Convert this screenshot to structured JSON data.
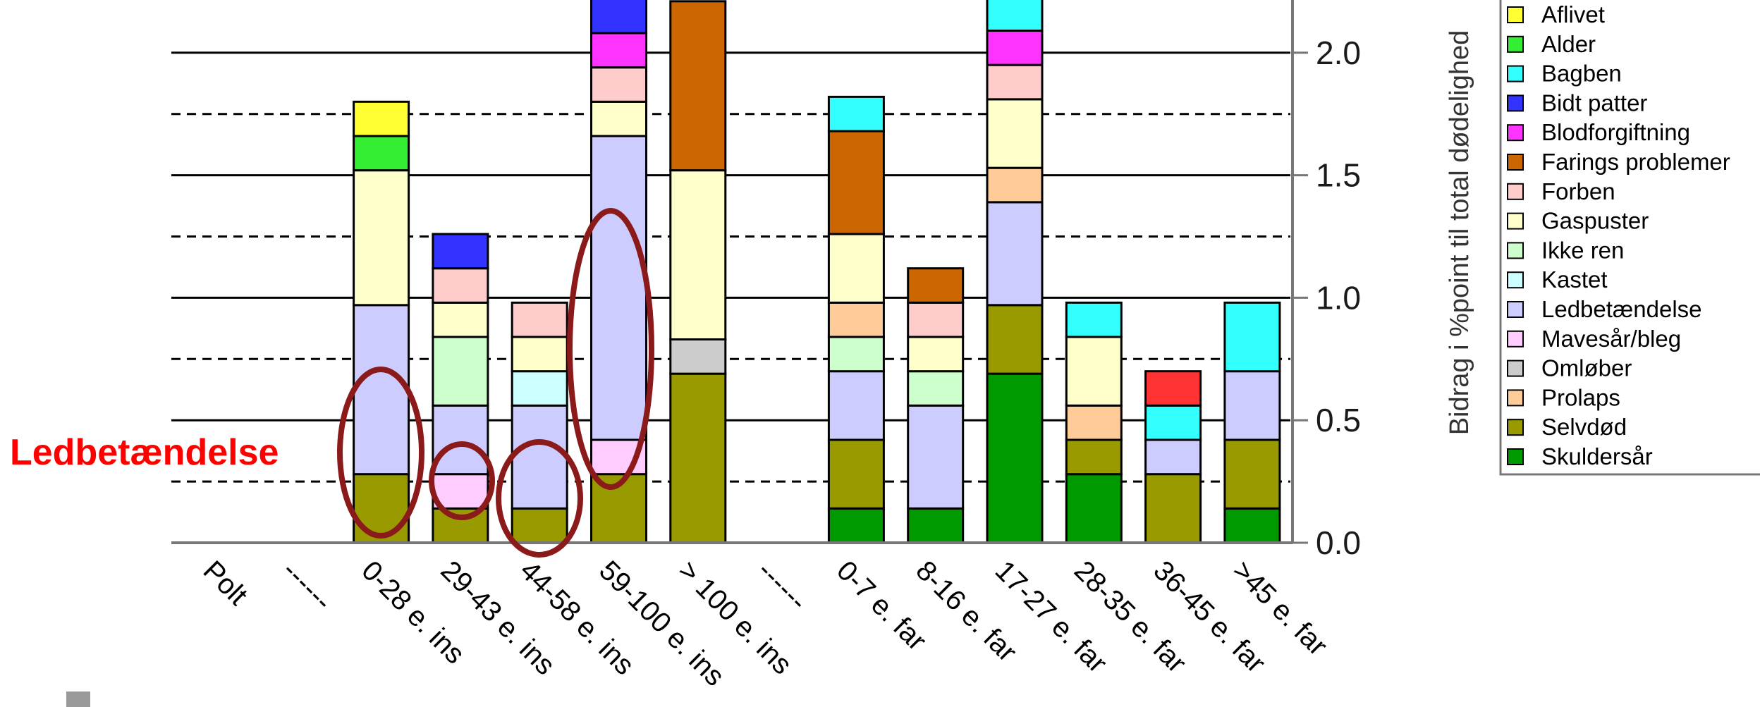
{
  "chart_data": {
    "type": "bar",
    "stacked": true,
    "ylabel": "Bidrag i %point til total dødelighed",
    "ylim": [
      0,
      2.2
    ],
    "yticks": [
      "0.0",
      "0.5",
      "1.0",
      "1.5",
      "2.0"
    ],
    "grid": "solid at 0.5 steps, dashed at 0.25 steps",
    "legend_position": "right",
    "categories": [
      "Polt",
      "------",
      "0-28 e. ins",
      "29-43 e. ins",
      "44-58 e. ins",
      "59-100 e. ins",
      "> 100 e. ins",
      "------",
      "0-7 e. far",
      "8-16 e. far",
      "17-27 e. far",
      "28-35 e. far",
      "36-45 e. far",
      ">45 e. far"
    ],
    "series": [
      {
        "name": "Skuldersår",
        "color": "#009a00",
        "values": [
          0,
          0,
          0,
          0,
          0,
          0,
          0,
          0,
          0.14,
          0.14,
          0.69,
          0.28,
          0,
          0.14
        ]
      },
      {
        "name": "Selvdød",
        "color": "#999900",
        "values": [
          0,
          0,
          0.28,
          0.14,
          0.14,
          0.28,
          0.69,
          0,
          0.28,
          0,
          0.28,
          0.14,
          0.28,
          0.28
        ]
      },
      {
        "name": "Mavesår/bleg",
        "color": "#ffccff",
        "values": [
          0,
          0,
          0,
          0.14,
          0,
          0.14,
          0,
          0,
          0,
          0,
          0,
          0,
          0,
          0
        ]
      },
      {
        "name": "Ledbetændelse",
        "color": "#ccccff",
        "values": [
          0,
          0,
          0.69,
          0.28,
          0.42,
          1.24,
          0,
          0,
          0.28,
          0.42,
          0.42,
          0,
          0.14,
          0.28
        ]
      },
      {
        "name": "Omløber",
        "color": "#cccccc",
        "values": [
          0,
          0,
          0,
          0,
          0,
          0,
          0.14,
          0,
          0,
          0,
          0,
          0,
          0,
          0
        ]
      },
      {
        "name": "Ikke ren",
        "color": "#ccffcc",
        "values": [
          0,
          0,
          0,
          0.28,
          0,
          0,
          0,
          0,
          0.14,
          0.14,
          0,
          0,
          0,
          0
        ]
      },
      {
        "name": "Kastet",
        "color": "#ccffff",
        "values": [
          0,
          0,
          0,
          0,
          0.14,
          0,
          0,
          0,
          0,
          0,
          0,
          0,
          0,
          0
        ]
      },
      {
        "name": "Prolaps",
        "color": "#ffcc99",
        "values": [
          0,
          0,
          0,
          0,
          0,
          0,
          0,
          0,
          0.14,
          0,
          0.14,
          0.14,
          0,
          0
        ]
      },
      {
        "name": "Gaspuster",
        "color": "#ffffcc",
        "values": [
          0,
          0,
          0.55,
          0.14,
          0.14,
          0.14,
          0.69,
          0,
          0.28,
          0.14,
          0.28,
          0.28,
          0,
          0
        ]
      },
      {
        "name": "Forben",
        "color": "#ffcccc",
        "values": [
          0,
          0,
          0,
          0.14,
          0.14,
          0.14,
          0,
          0,
          0,
          0.14,
          0.14,
          0,
          0,
          0
        ]
      },
      {
        "name": "Farings problemer",
        "color": "#cc6600",
        "values": [
          0,
          0,
          0,
          0,
          0,
          0,
          0.69,
          0,
          0.42,
          0.14,
          0,
          0,
          0,
          0
        ]
      },
      {
        "name": "Blodforgiftning",
        "color": "#ff33ff",
        "values": [
          0,
          0,
          0,
          0,
          0,
          0.14,
          0,
          0,
          0,
          0,
          0.14,
          0,
          0,
          0
        ]
      },
      {
        "name": "Bidt patter",
        "color": "#3333ff",
        "values": [
          0,
          0,
          0,
          0.14,
          0,
          0.14,
          0,
          0,
          0,
          0,
          0,
          0,
          0,
          0
        ]
      },
      {
        "name": "Bagben",
        "color": "#33ffff",
        "values": [
          0,
          0,
          0,
          0,
          0,
          0,
          0,
          0,
          0.14,
          0,
          0.14,
          0.14,
          0.14,
          0.28
        ]
      },
      {
        "name": "Alder",
        "color": "#33ee33",
        "values": [
          0,
          0,
          0.14,
          0,
          0,
          0,
          0,
          0,
          0,
          0,
          0,
          0,
          0,
          0
        ]
      },
      {
        "name": "Aflivet",
        "color": "#ffff33",
        "values": [
          0,
          0,
          0.14,
          0,
          0,
          0,
          0,
          0,
          0,
          0,
          0,
          0,
          0,
          0
        ]
      },
      {
        "name": "",
        "color": "#ff3333",
        "values": [
          0,
          0,
          0,
          0,
          0,
          0,
          0,
          0,
          0,
          0,
          0,
          0,
          0.14,
          0
        ]
      }
    ],
    "legend": [
      "Aflivet",
      "Alder",
      "Bagben",
      "Bidt patter",
      "Blodforgiftning",
      "Farings problemer",
      "Forben",
      "Gaspuster",
      "Ikke ren",
      "Kastet",
      "Ledbetændelse",
      "Mavesår/bleg",
      "Omløber",
      "Prolaps",
      "Selvdød",
      "Skuldersår"
    ],
    "legend_colors": [
      "#ffff33",
      "#33ee33",
      "#33ffff",
      "#3333ff",
      "#ff33ff",
      "#cc6600",
      "#ffcccc",
      "#ffffcc",
      "#ccffcc",
      "#ccffff",
      "#ccccff",
      "#ffccff",
      "#cccccc",
      "#ffcc99",
      "#999900",
      "#009a00"
    ],
    "annotation": {
      "text": "Ledbetændelse",
      "color": "#ff0000",
      "highlight_color": "#8b1a1a",
      "highlighted_categories": [
        "0-28 e. ins",
        "29-43 e. ins",
        "44-58 e. ins",
        "59-100 e. ins"
      ]
    }
  }
}
